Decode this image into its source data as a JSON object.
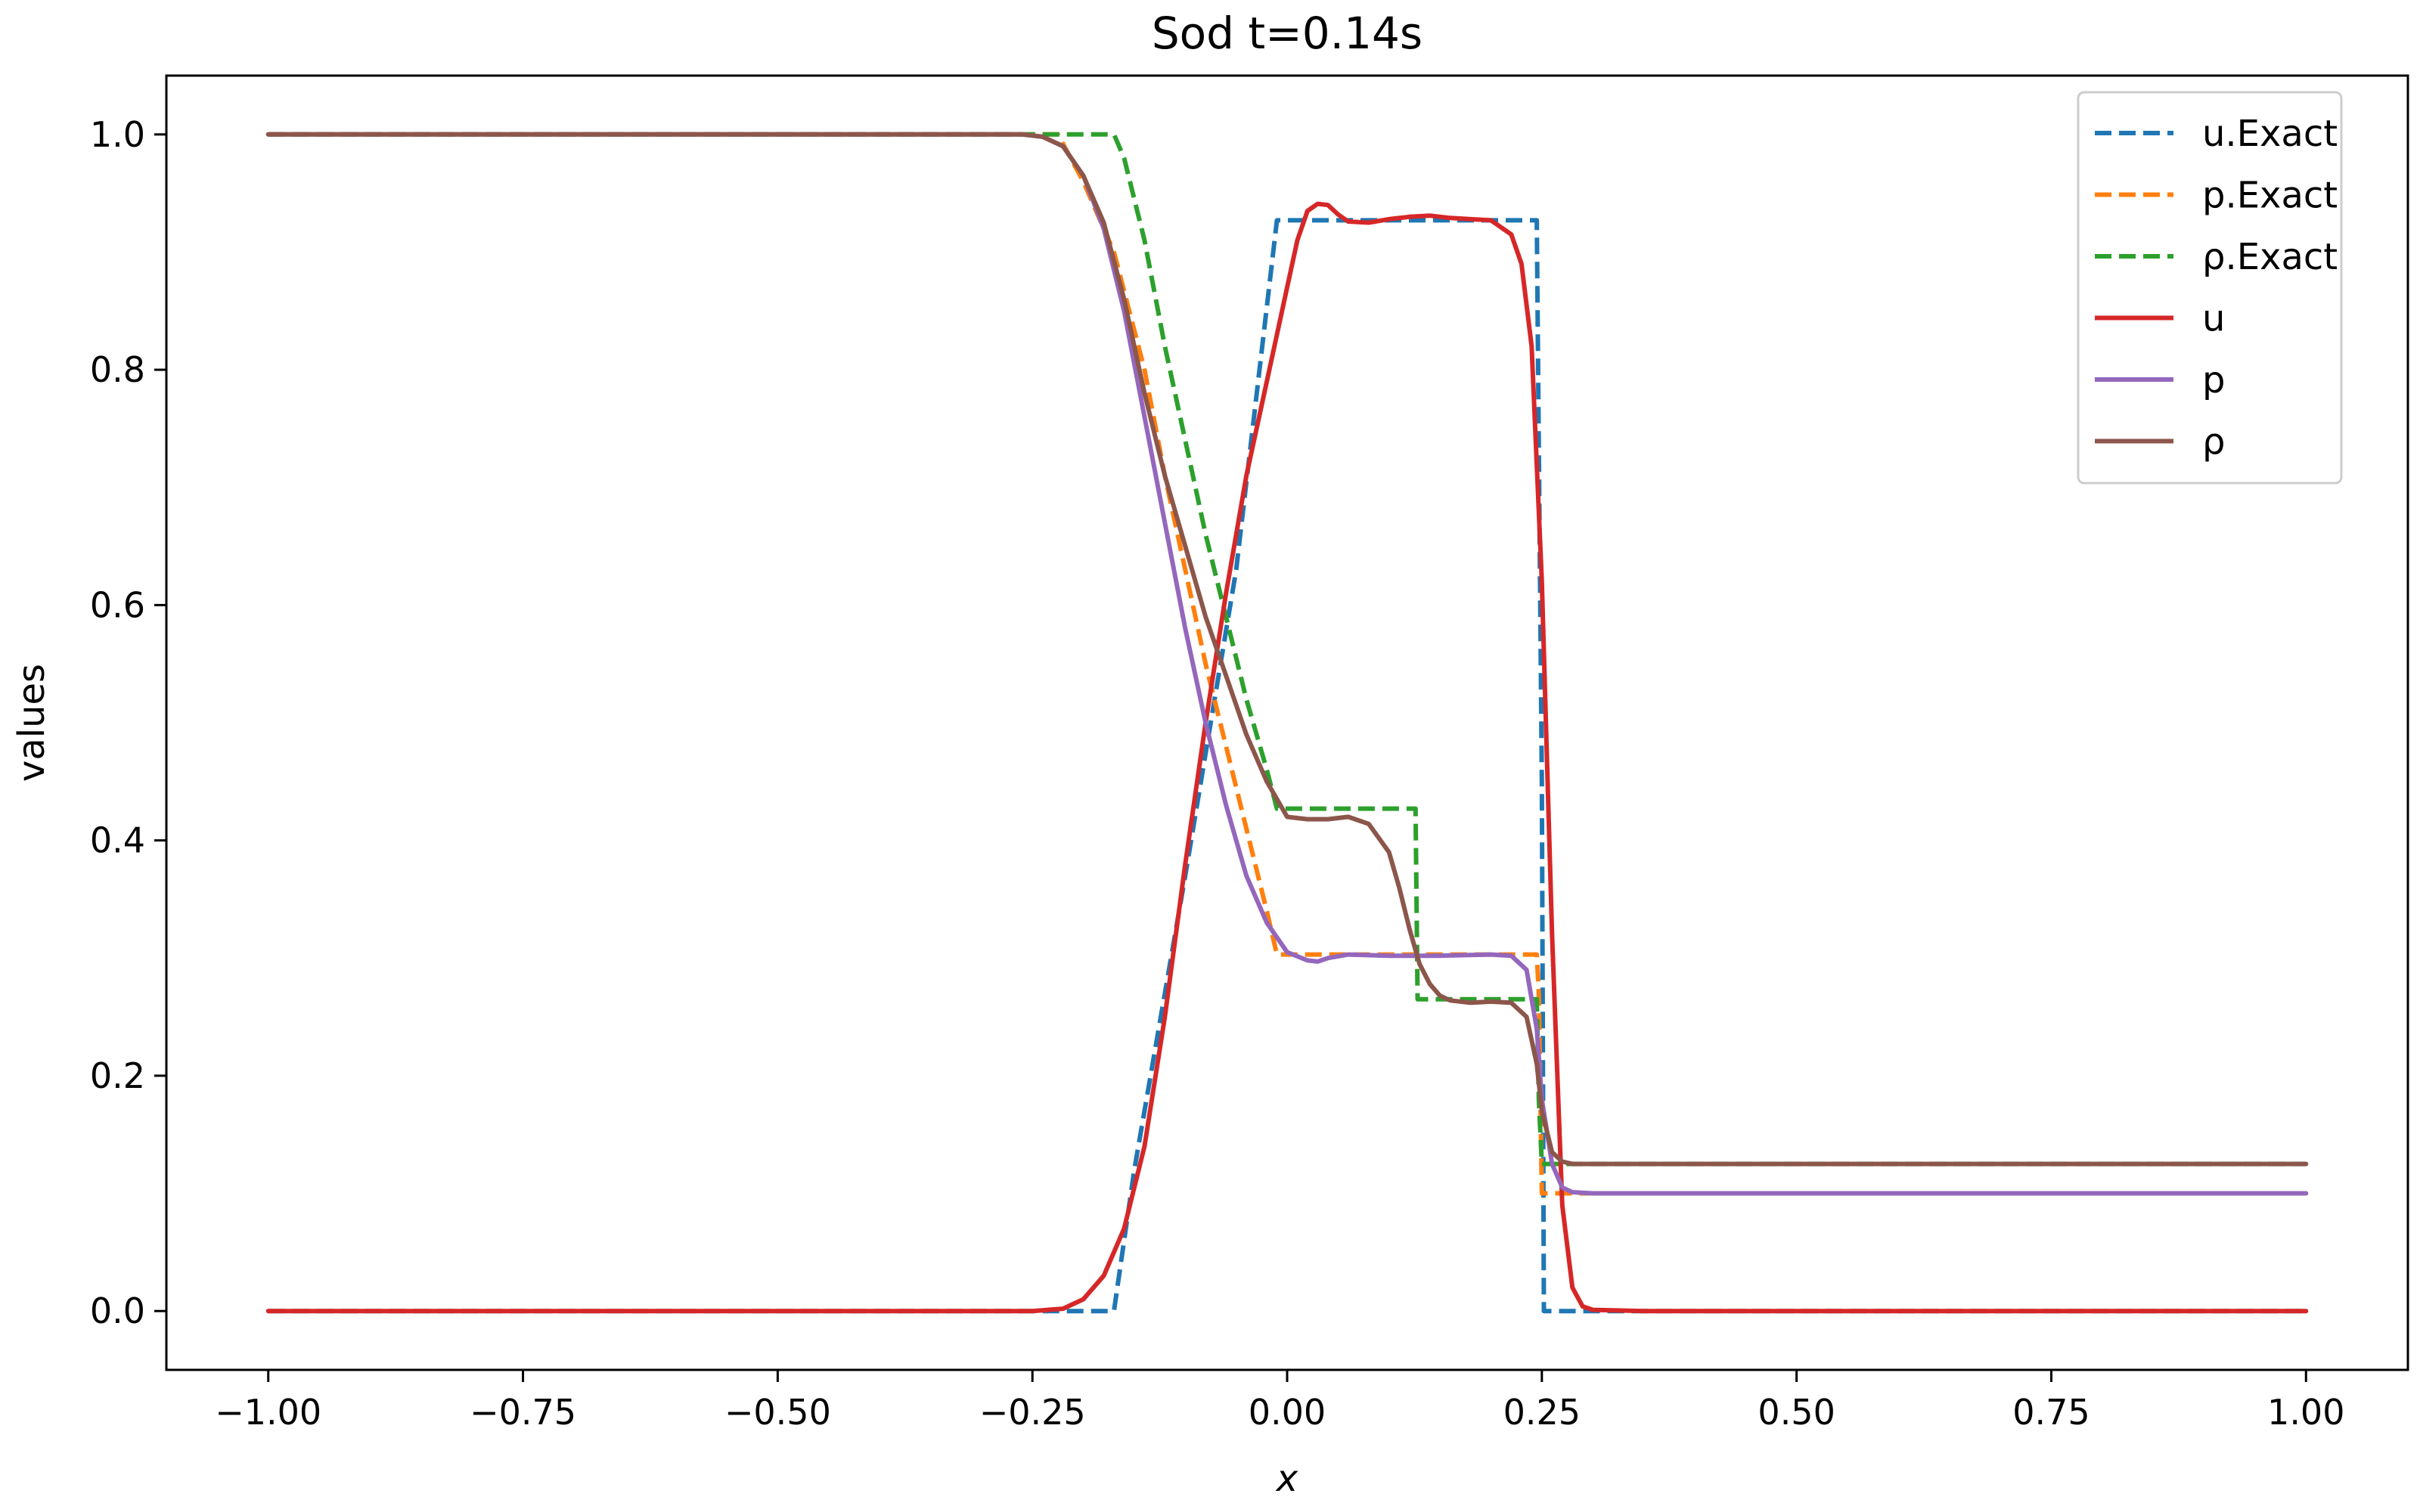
{
  "chart_data": {
    "type": "line",
    "title": "Sod t=0.14s",
    "xlabel": "x",
    "ylabel": "values",
    "xlim": [
      -1.1,
      1.1
    ],
    "ylim": [
      -0.05,
      1.05
    ],
    "xticks": [
      -1.0,
      -0.75,
      -0.5,
      -0.25,
      0.0,
      0.25,
      0.5,
      0.75,
      1.0
    ],
    "xtick_labels": [
      "−1.00",
      "−0.75",
      "−0.50",
      "−0.25",
      "0.00",
      "0.25",
      "0.50",
      "0.75",
      "1.00"
    ],
    "yticks": [
      0.0,
      0.2,
      0.4,
      0.6,
      0.8,
      1.0
    ],
    "ytick_labels": [
      "0.0",
      "0.2",
      "0.4",
      "0.6",
      "0.8",
      "1.0"
    ],
    "grid": false,
    "legend_position": "top-right",
    "series": [
      {
        "name": "u.Exact",
        "color": "#1f77b4",
        "dash": true,
        "x": [
          -1.0,
          -0.17,
          -0.15,
          -0.1,
          -0.05,
          -0.01,
          0.245,
          0.25,
          0.252,
          1.0
        ],
        "y": [
          0.0,
          0.0,
          0.12,
          0.37,
          0.63,
          0.927,
          0.927,
          0.45,
          0.0,
          0.0
        ]
      },
      {
        "name": "p.Exact",
        "color": "#ff7f0e",
        "dash": true,
        "x": [
          -1.0,
          -0.225,
          -0.2,
          -0.17,
          -0.14,
          -0.12,
          -0.1,
          -0.08,
          -0.06,
          -0.04,
          -0.02,
          -0.01,
          0.245,
          0.247,
          0.25,
          1.0
        ],
        "y": [
          1.0,
          1.0,
          0.96,
          0.9,
          0.8,
          0.71,
          0.63,
          0.55,
          0.48,
          0.41,
          0.34,
          0.303,
          0.303,
          0.27,
          0.1,
          0.1
        ]
      },
      {
        "name": "ρ.Exact",
        "color": "#2ca02c",
        "dash": true,
        "x": [
          -1.0,
          -0.17,
          -0.16,
          -0.14,
          -0.12,
          -0.1,
          -0.08,
          -0.06,
          -0.04,
          -0.02,
          -0.01,
          0.126,
          0.128,
          0.245,
          0.247,
          0.25,
          1.0
        ],
        "y": [
          1.0,
          1.0,
          0.98,
          0.91,
          0.82,
          0.74,
          0.66,
          0.59,
          0.52,
          0.46,
          0.427,
          0.427,
          0.265,
          0.265,
          0.18,
          0.125,
          0.125
        ]
      },
      {
        "name": "u",
        "color": "#d62728",
        "dash": false,
        "x": [
          -1.0,
          -0.25,
          -0.22,
          -0.2,
          -0.18,
          -0.16,
          -0.14,
          -0.12,
          -0.1,
          -0.08,
          -0.06,
          -0.04,
          -0.02,
          0.0,
          0.01,
          0.02,
          0.03,
          0.04,
          0.05,
          0.06,
          0.08,
          0.1,
          0.12,
          0.14,
          0.16,
          0.18,
          0.2,
          0.22,
          0.23,
          0.24,
          0.25,
          0.26,
          0.27,
          0.28,
          0.29,
          0.3,
          0.35,
          1.0
        ],
        "y": [
          0.0,
          0.0,
          0.002,
          0.01,
          0.03,
          0.07,
          0.14,
          0.25,
          0.38,
          0.5,
          0.61,
          0.71,
          0.79,
          0.87,
          0.91,
          0.935,
          0.941,
          0.94,
          0.932,
          0.926,
          0.925,
          0.928,
          0.93,
          0.931,
          0.929,
          0.928,
          0.927,
          0.915,
          0.89,
          0.82,
          0.62,
          0.32,
          0.09,
          0.02,
          0.004,
          0.001,
          0.0,
          0.0
        ]
      },
      {
        "name": "p",
        "color": "#9467bd",
        "dash": false,
        "x": [
          -1.0,
          -0.26,
          -0.24,
          -0.22,
          -0.2,
          -0.18,
          -0.16,
          -0.14,
          -0.12,
          -0.1,
          -0.08,
          -0.06,
          -0.04,
          -0.02,
          0.0,
          0.02,
          0.03,
          0.04,
          0.06,
          0.1,
          0.15,
          0.2,
          0.22,
          0.235,
          0.245,
          0.25,
          0.26,
          0.27,
          0.28,
          0.3,
          1.0
        ],
        "y": [
          1.0,
          1.0,
          0.998,
          0.99,
          0.965,
          0.92,
          0.85,
          0.76,
          0.67,
          0.58,
          0.5,
          0.43,
          0.37,
          0.33,
          0.305,
          0.298,
          0.297,
          0.3,
          0.303,
          0.302,
          0.302,
          0.303,
          0.302,
          0.29,
          0.24,
          0.18,
          0.125,
          0.105,
          0.101,
          0.1,
          0.1
        ]
      },
      {
        "name": "ρ",
        "color": "#8c564b",
        "dash": false,
        "x": [
          -1.0,
          -0.26,
          -0.24,
          -0.22,
          -0.2,
          -0.18,
          -0.16,
          -0.14,
          -0.12,
          -0.1,
          -0.08,
          -0.06,
          -0.04,
          -0.02,
          0.0,
          0.02,
          0.04,
          0.06,
          0.08,
          0.1,
          0.11,
          0.12,
          0.13,
          0.14,
          0.15,
          0.16,
          0.18,
          0.2,
          0.22,
          0.235,
          0.245,
          0.25,
          0.26,
          0.27,
          0.28,
          0.3,
          1.0
        ],
        "y": [
          1.0,
          1.0,
          0.998,
          0.99,
          0.965,
          0.925,
          0.86,
          0.78,
          0.71,
          0.65,
          0.59,
          0.54,
          0.49,
          0.45,
          0.42,
          0.418,
          0.418,
          0.42,
          0.414,
          0.39,
          0.36,
          0.325,
          0.295,
          0.278,
          0.268,
          0.264,
          0.262,
          0.263,
          0.262,
          0.25,
          0.21,
          0.17,
          0.135,
          0.127,
          0.125,
          0.125,
          0.125
        ]
      }
    ]
  }
}
